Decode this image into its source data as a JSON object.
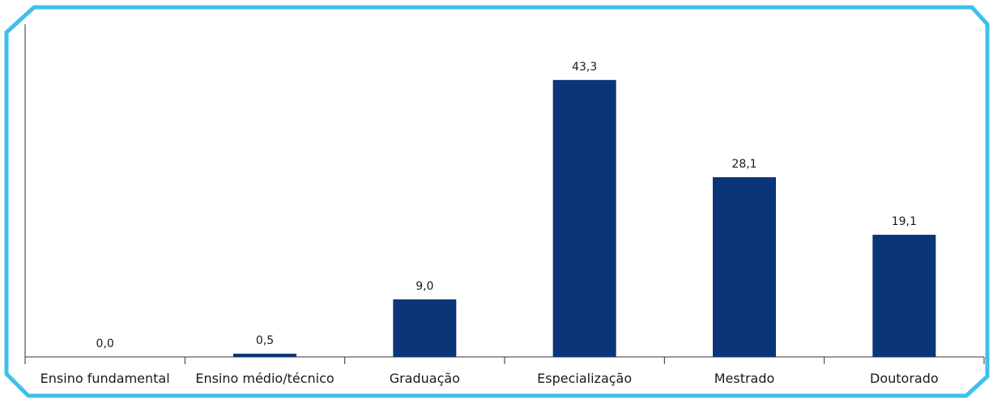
{
  "chart_data": {
    "type": "bar",
    "categories": [
      "Ensino fundamental",
      "Ensino médio/técnico",
      "Graduação",
      "Especialização",
      "Mestrado",
      "Doutorado"
    ],
    "values": [
      0.0,
      0.5,
      9.0,
      43.3,
      28.1,
      19.1
    ],
    "value_labels": [
      "0,0",
      "0,5",
      "9,0",
      "43,3",
      "28,1",
      "19,1"
    ],
    "ylim": [
      0,
      45
    ],
    "grid": false,
    "legend": "none",
    "colors": {
      "bar": "#0b3578",
      "frame": "#3ec0ea",
      "axis": "#333333"
    }
  }
}
